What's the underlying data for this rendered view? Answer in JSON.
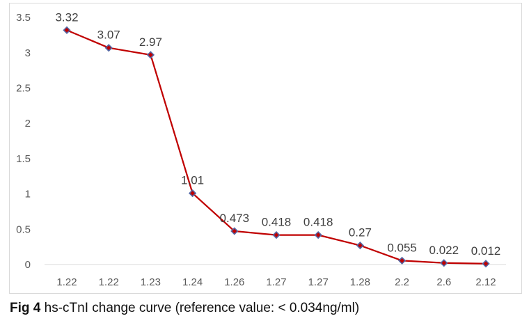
{
  "caption": {
    "label": "Fig 4",
    "text": " hs-cTnI change curve (reference value: < 0.034ng/ml)"
  },
  "chart_data": {
    "type": "line",
    "categories": [
      "1.22",
      "1.22",
      "1.23",
      "1.24",
      "1.26",
      "1.27",
      "1.27",
      "1.28",
      "2.2",
      "2.6",
      "2.12"
    ],
    "values": [
      3.32,
      3.07,
      2.97,
      1.01,
      0.473,
      0.418,
      0.418,
      0.27,
      0.055,
      0.022,
      0.012
    ],
    "data_labels": [
      "3.32",
      "3.07",
      "2.97",
      "1.01",
      "0.473",
      "0.418",
      "0.418",
      "0.27",
      "0.055",
      "0.022",
      "0.012"
    ],
    "y_tick_labels": [
      "0",
      "0.5",
      "1",
      "1.5",
      "2",
      "2.5",
      "3",
      "3.5"
    ],
    "y_ticks": [
      0,
      0.5,
      1,
      1.5,
      2,
      2.5,
      3,
      3.5
    ],
    "ylim": [
      0,
      3.5
    ],
    "grid": false,
    "legend": "none",
    "marker": "diamond",
    "colors": {
      "line": "#c00000",
      "marker_fill": "#c00000",
      "marker_stroke": "#5568a5",
      "tick_label": "#595959",
      "data_label": "#404040",
      "axis_line": "#d9d9d9",
      "frame_border": "#d9d9d9",
      "caption_text": "#111111"
    }
  }
}
